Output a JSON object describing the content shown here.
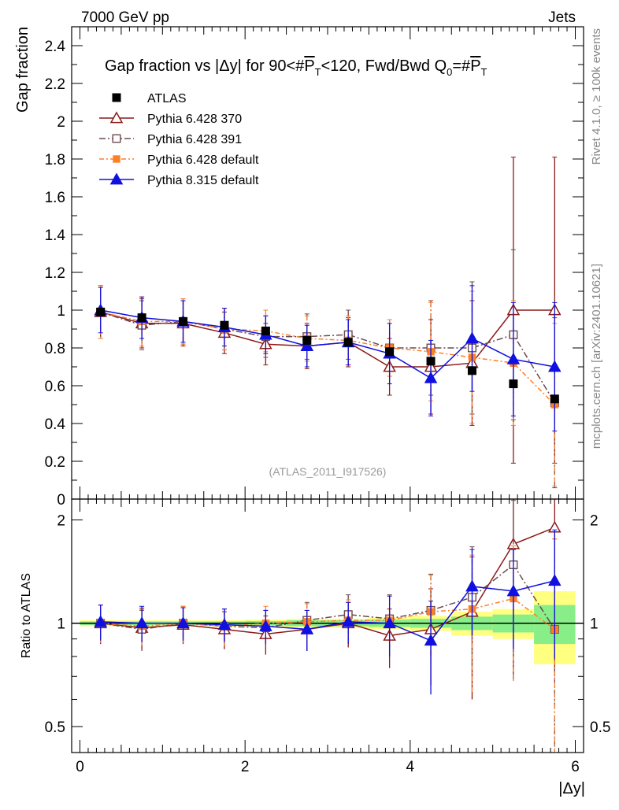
{
  "header": {
    "energy_label": "7000 GeV pp",
    "process_label": "Jets",
    "side_label_top": "Rivet 4.1.0, ≥ 100k events",
    "side_label_bottom": "mcplots.cern.ch [arXiv:2401.10621]"
  },
  "chart_data": {
    "type": "scatter",
    "title_parts": {
      "prefix": "Gap fraction vs |Δy| for 90<#",
      "p1": "P",
      "sub1": "T",
      "mid": "<120, Fwd/Bwd Q",
      "sub2": "0",
      "eq": "=#",
      "p2": "P",
      "sub3": "T"
    },
    "watermark": "(ATLAS_2011_I917526)",
    "xlabel": "|Δy|",
    "ylabel": "Gap fraction",
    "ratio_ylabel": "Ratio to ATLAS",
    "xlim": [
      -0.1,
      6.1
    ],
    "ylim": [
      0,
      2.5
    ],
    "ratio_ylim": [
      0.42,
      2.3
    ],
    "x_ticks": [
      0,
      2,
      4,
      6
    ],
    "x_tick_labels": [
      "0",
      "2",
      "4",
      "6"
    ],
    "y_ticks": [
      0,
      0.2,
      0.4,
      0.6,
      0.8,
      1,
      1.2,
      1.4,
      1.6,
      1.8,
      2,
      2.2,
      2.4
    ],
    "y_tick_labels": [
      "0",
      "0.2",
      "0.4",
      "0.6",
      "0.8",
      "1",
      "1.2",
      "1.4",
      "1.6",
      "1.8",
      "2",
      "2.2",
      "2.4"
    ],
    "ratio_ticks": [
      0.5,
      1,
      2
    ],
    "ratio_tick_labels": [
      "0.5",
      "1",
      "2"
    ],
    "x": [
      0.25,
      0.75,
      1.25,
      1.75,
      2.25,
      2.75,
      3.25,
      3.75,
      4.25,
      4.75,
      5.25,
      5.75
    ],
    "data": {
      "name": "ATLAS",
      "values": [
        0.99,
        0.96,
        0.94,
        0.92,
        0.89,
        0.84,
        0.83,
        0.78,
        0.73,
        0.68,
        0.61,
        0.53
      ],
      "band_inner": [
        0.012,
        0.012,
        0.012,
        0.012,
        0.015,
        0.02,
        0.02,
        0.025,
        0.03,
        0.045,
        0.06,
        0.13
      ],
      "band_outer": [
        0.02,
        0.02,
        0.02,
        0.02,
        0.025,
        0.03,
        0.03,
        0.04,
        0.05,
        0.08,
        0.1,
        0.24
      ]
    },
    "series": [
      {
        "name": "Pythia 6.428 370",
        "color": "#8b1a1a",
        "marker": "open-triangle",
        "dash": "",
        "values": [
          0.99,
          0.93,
          0.93,
          0.88,
          0.82,
          0.81,
          0.83,
          0.7,
          0.7,
          0.72,
          1.0,
          1.0
        ],
        "errors": [
          0.14,
          0.13,
          0.12,
          0.11,
          0.11,
          0.12,
          0.13,
          0.15,
          0.25,
          0.33,
          0.81,
          0.81
        ],
        "ratio": [
          1.0,
          0.97,
          0.99,
          0.96,
          0.93,
          0.96,
          1.0,
          0.92,
          0.96,
          1.08,
          1.7,
          1.9
        ],
        "ratio_errors": [
          0.13,
          0.13,
          0.12,
          0.12,
          0.12,
          0.13,
          0.15,
          0.18,
          0.3,
          0.48,
          1.0,
          1.2
        ]
      },
      {
        "name": "Pythia 6.428 391",
        "color": "#6b4a50",
        "marker": "open-square",
        "dash": "8,3,2,3",
        "values": [
          0.99,
          0.92,
          0.94,
          0.9,
          0.86,
          0.86,
          0.87,
          0.8,
          0.8,
          0.8,
          0.87,
          0.51
        ],
        "errors": [
          0.14,
          0.13,
          0.12,
          0.11,
          0.11,
          0.12,
          0.13,
          0.15,
          0.25,
          0.35,
          0.45,
          0.45
        ],
        "ratio": [
          1.0,
          0.96,
          1.0,
          0.98,
          0.97,
          1.02,
          1.06,
          1.03,
          1.09,
          1.19,
          1.48,
          0.96
        ],
        "ratio_errors": [
          0.13,
          0.13,
          0.12,
          0.12,
          0.12,
          0.13,
          0.15,
          0.18,
          0.3,
          0.48,
          0.8,
          0.8
        ]
      },
      {
        "name": "Pythia 6.428 default",
        "color": "#ff7f27",
        "marker": "filled-square",
        "dash": "6,3,2,3",
        "values": [
          0.99,
          0.94,
          0.94,
          0.9,
          0.89,
          0.85,
          0.84,
          0.8,
          0.78,
          0.75,
          0.72,
          0.5
        ],
        "errors": [
          0.14,
          0.13,
          0.12,
          0.11,
          0.11,
          0.12,
          0.13,
          0.15,
          0.26,
          0.35,
          0.33,
          0.43
        ],
        "ratio": [
          1.0,
          0.98,
          1.0,
          0.98,
          1.0,
          1.01,
          1.02,
          1.02,
          1.08,
          1.1,
          1.18,
          0.96
        ],
        "ratio_errors": [
          0.13,
          0.13,
          0.12,
          0.12,
          0.12,
          0.13,
          0.15,
          0.18,
          0.3,
          0.48,
          0.5,
          0.8
        ]
      },
      {
        "name": "Pythia 8.315 default",
        "color": "#1010e0",
        "marker": "filled-triangle",
        "dash": "",
        "values": [
          1.0,
          0.96,
          0.94,
          0.91,
          0.87,
          0.81,
          0.83,
          0.77,
          0.64,
          0.85,
          0.74,
          0.7
        ],
        "errors": [
          0.12,
          0.11,
          0.11,
          0.1,
          0.1,
          0.11,
          0.12,
          0.16,
          0.2,
          0.28,
          0.3,
          0.34
        ],
        "ratio": [
          1.01,
          1.0,
          1.0,
          0.99,
          0.98,
          0.96,
          1.01,
          1.0,
          0.89,
          1.28,
          1.24,
          1.33
        ],
        "ratio_errors": [
          0.12,
          0.12,
          0.11,
          0.11,
          0.11,
          0.13,
          0.14,
          0.2,
          0.27,
          0.36,
          0.4,
          0.54
        ]
      }
    ]
  }
}
